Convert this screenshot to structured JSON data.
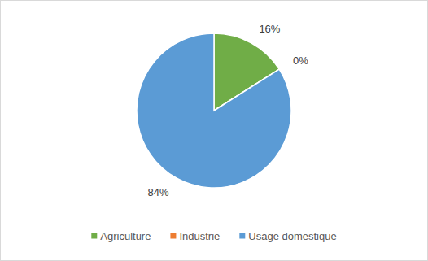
{
  "chart_data": {
    "type": "pie",
    "categories": [
      "Agriculture",
      "Industrie",
      "Usage domestique"
    ],
    "values": [
      16,
      0,
      84
    ],
    "value_labels": [
      "16%",
      "0%",
      "84%"
    ],
    "colors": [
      "#70ad47",
      "#ed7d31",
      "#5b9bd5"
    ],
    "data_labels": true,
    "legend": "bottom"
  }
}
